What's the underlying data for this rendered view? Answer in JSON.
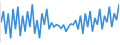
{
  "chart_data": {
    "type": "line",
    "color": "#3a8fd6",
    "tick_labels": false,
    "grid": false,
    "x": [
      0,
      1,
      2,
      3,
      4,
      5,
      6,
      7,
      8,
      9,
      10,
      11,
      12,
      13,
      14,
      15,
      16,
      17,
      18,
      19,
      20,
      21,
      22,
      23,
      24,
      25,
      26,
      27,
      28,
      29,
      30,
      31,
      32,
      33,
      34,
      35,
      36,
      37,
      38,
      39,
      40,
      41,
      42,
      43,
      44,
      45,
      46,
      47,
      48,
      49
    ],
    "values": [
      55,
      80,
      30,
      75,
      20,
      85,
      40,
      90,
      25,
      70,
      35,
      80,
      45,
      95,
      30,
      60,
      20,
      75,
      50,
      85,
      40,
      55,
      45,
      50,
      48,
      42,
      50,
      35,
      45,
      52,
      50,
      60,
      40,
      70,
      30,
      75,
      45,
      80,
      35,
      65,
      50,
      85,
      40,
      70,
      55,
      90,
      45,
      75,
      60,
      95
    ],
    "xlim": [
      0,
      49
    ],
    "ylim": [
      10,
      100
    ]
  }
}
